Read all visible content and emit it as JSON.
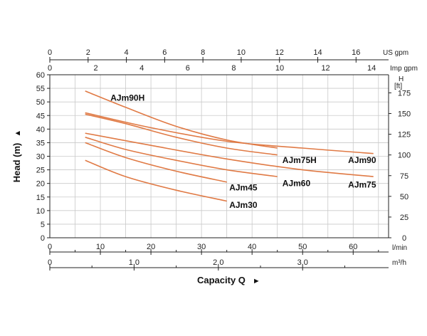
{
  "chart_data": {
    "type": "line",
    "title": "",
    "ylabel": "Head (m)",
    "ylabel_arrow": "▲",
    "xlabel": "Capacity Q",
    "xlabel_arrow": "►",
    "x_unit_lmin": "l/min",
    "x_unit_m3h": "m³/h",
    "top_axis_us_label": "US gpm",
    "top_axis_imp_label": "Imp gpm",
    "right_axis_title": "H",
    "right_axis_unit": "[ft]",
    "xlim_lmin": [
      0,
      67
    ],
    "ylim_m": [
      0,
      60
    ],
    "grid": true,
    "y_ticks_m": [
      "0",
      "5",
      "10",
      "15",
      "20",
      "25",
      "30",
      "35",
      "40",
      "45",
      "50",
      "55",
      "60"
    ],
    "x_ticks_lmin": [
      "0",
      "10",
      "20",
      "30",
      "40",
      "50",
      "60"
    ],
    "x_ticks_m3h": [
      "0",
      "1.0",
      "2.0",
      "3.0"
    ],
    "x_ticks_m3h_values": [
      0,
      1.0,
      2.0,
      3.0
    ],
    "top_us_ticks": [
      "0",
      "2",
      "4",
      "6",
      "8",
      "10",
      "12",
      "14",
      "16"
    ],
    "top_imp_ticks": [
      "0",
      "2",
      "4",
      "6",
      "8",
      "10",
      "12",
      "14"
    ],
    "right_ft_ticks": [
      "0",
      "25",
      "50",
      "75",
      "100",
      "125",
      "150",
      "175"
    ],
    "series": [
      {
        "name": "AJm90H",
        "color": "#e07a45",
        "x": [
          7,
          15,
          25,
          35,
          45
        ],
        "y": [
          54,
          48,
          41,
          36,
          33
        ]
      },
      {
        "name": "AJm90",
        "color": "#e07a45",
        "x": [
          7,
          20,
          35,
          50,
          64
        ],
        "y": [
          46,
          40.5,
          35.5,
          33,
          31
        ]
      },
      {
        "name": "AJm75H",
        "color": "#e07a45",
        "x": [
          7,
          15,
          25,
          35,
          45
        ],
        "y": [
          45.5,
          42,
          37,
          33,
          30.5
        ]
      },
      {
        "name": "AJm75",
        "color": "#e07a45",
        "x": [
          7,
          20,
          35,
          50,
          64
        ],
        "y": [
          38.5,
          34,
          29,
          25,
          22.5
        ]
      },
      {
        "name": "AJm60",
        "color": "#e07a45",
        "x": [
          7,
          15,
          25,
          35,
          45
        ],
        "y": [
          37,
          32.5,
          28.5,
          25,
          22.5
        ]
      },
      {
        "name": "AJm45",
        "color": "#e07a45",
        "x": [
          7,
          15,
          25,
          35
        ],
        "y": [
          35,
          29.5,
          24.5,
          20.5
        ]
      },
      {
        "name": "AJm30",
        "color": "#e07a45",
        "x": [
          7,
          15,
          25,
          35
        ],
        "y": [
          28.5,
          22.5,
          17.5,
          13.5
        ]
      }
    ],
    "labels": [
      {
        "series": "AJm90H",
        "text": "AJm90H",
        "x": 12,
        "y": 51.5
      },
      {
        "series": "AJm90",
        "text": "AJm90",
        "x": 59,
        "y": 28.5
      },
      {
        "series": "AJm75H",
        "text": "AJm75H",
        "x": 46,
        "y": 28.5
      },
      {
        "series": "AJm75",
        "text": "AJm75",
        "x": 59,
        "y": 19.5
      },
      {
        "series": "AJm60",
        "text": "AJm60",
        "x": 46,
        "y": 20
      },
      {
        "series": "AJm45",
        "text": "AJm45",
        "x": 35.5,
        "y": 18.5
      },
      {
        "series": "AJm30",
        "text": "AJm30",
        "x": 35.5,
        "y": 12
      }
    ]
  }
}
